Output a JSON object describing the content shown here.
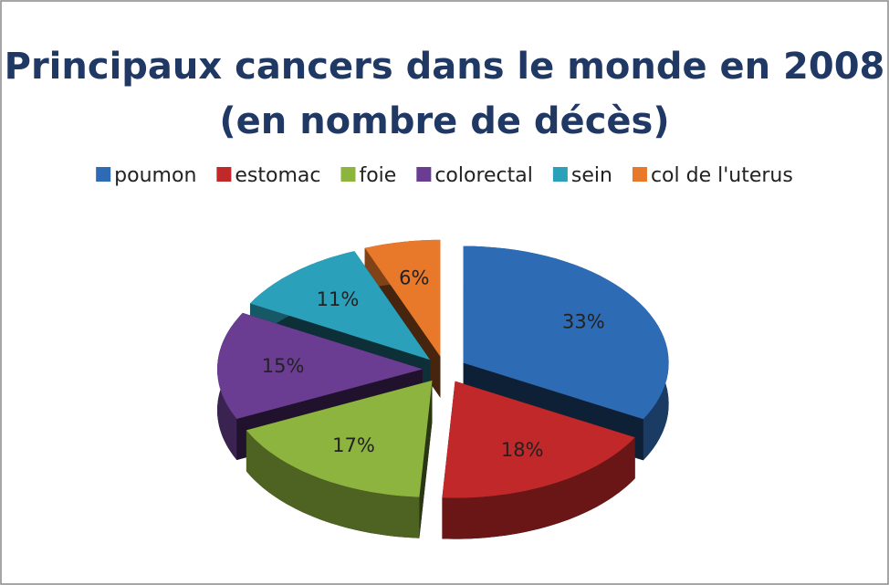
{
  "chart_data": {
    "type": "pie3d",
    "title": "Principaux cancers dans le monde en 2008 (en nombre de décès)",
    "categories": [
      "poumon",
      "estomac",
      "foie",
      "colorectal",
      "sein",
      "col de l'uterus"
    ],
    "values": [
      33,
      18,
      17,
      15,
      11,
      6
    ],
    "value_labels": [
      "33%",
      "18%",
      "17%",
      "15%",
      "11%",
      "6%"
    ],
    "colors": [
      "#2e6bb5",
      "#c0282a",
      "#8db43e",
      "#6a3d93",
      "#2aa0bb",
      "#e8782a"
    ],
    "legend": "top"
  }
}
